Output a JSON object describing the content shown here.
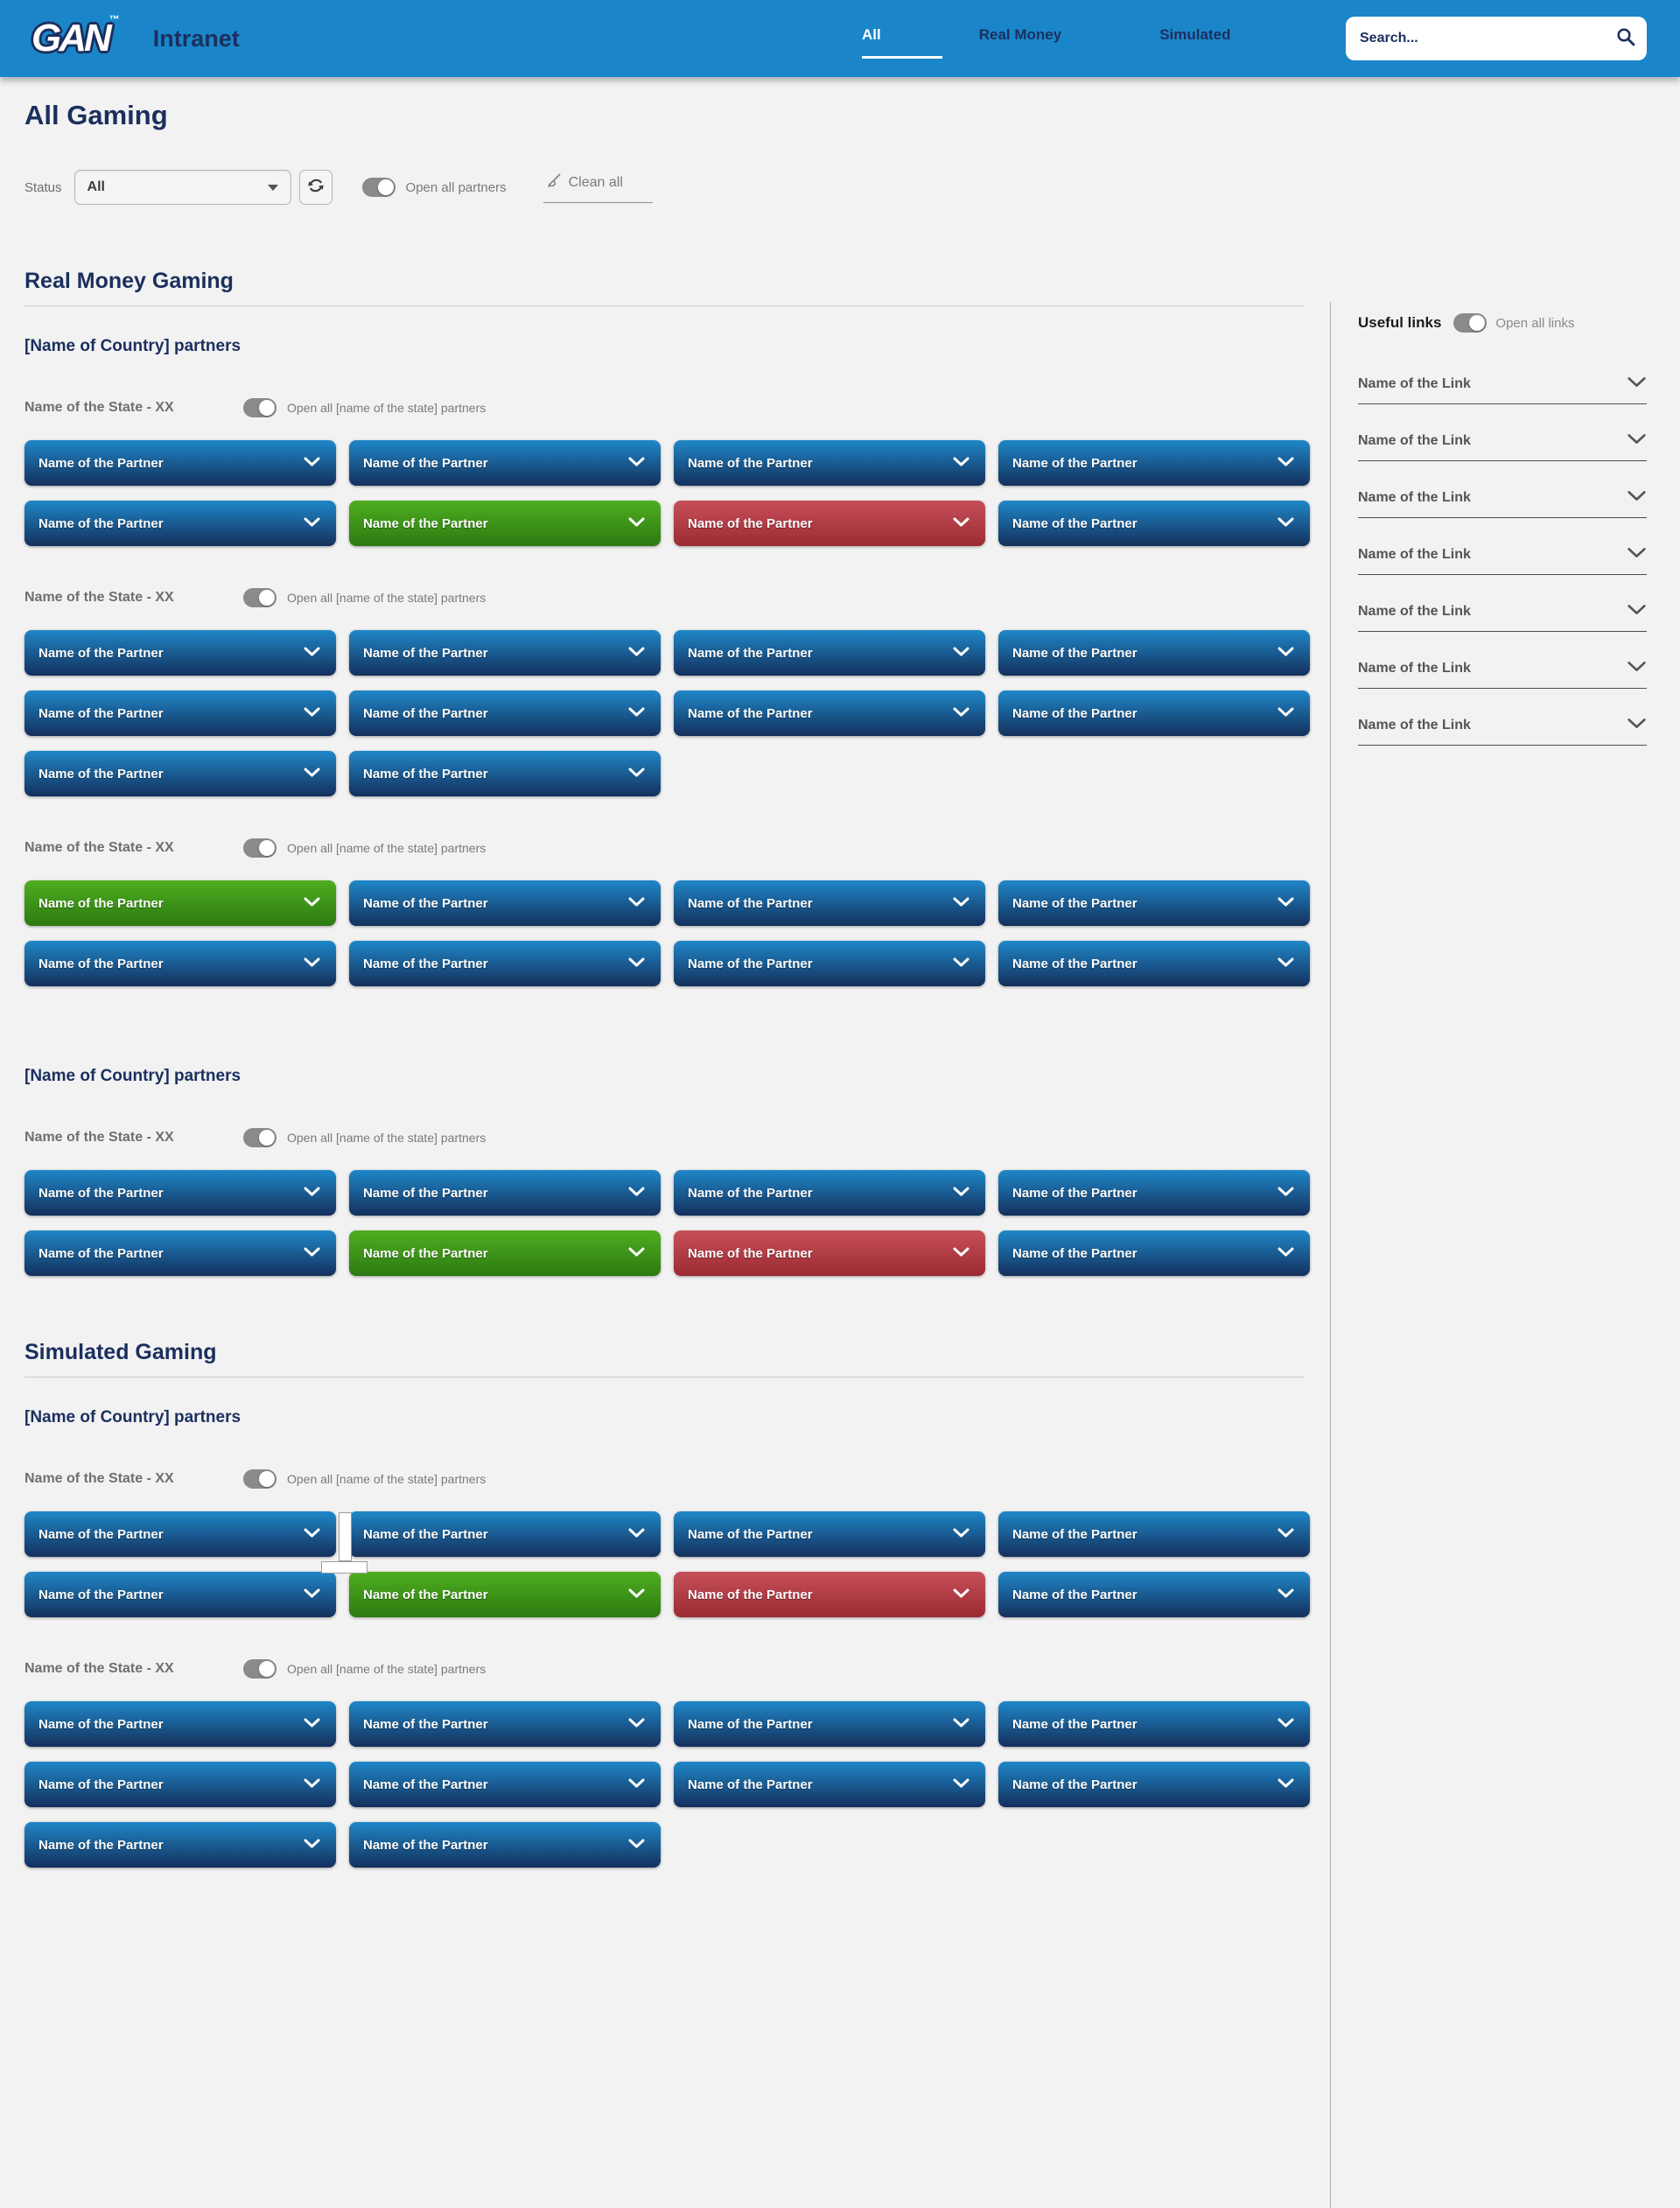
{
  "colors": {
    "header_blue": "#1a86c9",
    "navy_text": "#1b2f5e",
    "page_bg": "#f2f2f2",
    "partner_blue": [
      "#1f87c8",
      "#14305c"
    ],
    "partner_green": [
      "#4fae1f",
      "#2c7a11"
    ],
    "partner_red": [
      "#c65059",
      "#9c2a32"
    ],
    "gray_text": "#7a7a7a",
    "toggle_gray": "#8a8a8a"
  },
  "header": {
    "logo_text": "GAN",
    "logo_mark": "™",
    "app_title": "Intranet",
    "tabs": [
      {
        "label": "All",
        "active": true
      },
      {
        "label": "Real Money",
        "active": false
      },
      {
        "label": "Simulated",
        "active": false
      }
    ],
    "search_placeholder": "Search..."
  },
  "page_title": "All Gaming",
  "controls": {
    "status_label": "Status",
    "status_value": "All",
    "open_all_partners_label": "Open all partners",
    "clean_all_label": "Clean all"
  },
  "sections": [
    {
      "title": "Real Money Gaming",
      "countries": [
        {
          "title": "[Name of Country] partners",
          "states": [
            {
              "name": "Name of the State - XX",
              "toggle_label": "Open all [name of the state] partners",
              "partner_rows": [
                [
                  "blue",
                  "blue",
                  "blue",
                  "blue"
                ],
                [
                  "blue",
                  "green",
                  "red",
                  "blue"
                ]
              ]
            },
            {
              "name": "Name of the State - XX",
              "toggle_label": "Open all [name of the state] partners",
              "partner_rows": [
                [
                  "blue",
                  "blue",
                  "blue",
                  "blue"
                ],
                [
                  "blue",
                  "blue",
                  "blue",
                  "blue"
                ],
                [
                  "blue",
                  "blue"
                ]
              ]
            },
            {
              "name": "Name of the State - XX",
              "toggle_label": "Open all [name of the state] partners",
              "partner_rows": [
                [
                  "green",
                  "blue",
                  "blue",
                  "blue"
                ],
                [
                  "blue",
                  "blue",
                  "blue",
                  "blue"
                ]
              ]
            }
          ]
        },
        {
          "title": "[Name of Country] partners",
          "states": [
            {
              "name": "Name of the State - XX",
              "toggle_label": "Open all [name of the state] partners",
              "partner_rows": [
                [
                  "blue",
                  "blue",
                  "blue",
                  "blue"
                ],
                [
                  "blue",
                  "green",
                  "red",
                  "blue"
                ]
              ]
            }
          ]
        }
      ]
    },
    {
      "title": "Simulated Gaming",
      "countries": [
        {
          "title": "[Name of Country] partners",
          "states": [
            {
              "name": "Name of the State - XX",
              "toggle_label": "Open all [name of the state] partners",
              "partner_rows": [
                [
                  "blue",
                  "blue",
                  "blue",
                  "blue"
                ],
                [
                  "blue",
                  "green",
                  "red",
                  "blue"
                ]
              ],
              "scroll_marker": true
            },
            {
              "name": "Name of the State - XX",
              "toggle_label": "Open all [name of the state] partners",
              "partner_rows": [
                [
                  "blue",
                  "blue",
                  "blue",
                  "blue"
                ],
                [
                  "blue",
                  "blue",
                  "blue",
                  "blue"
                ],
                [
                  "blue",
                  "blue"
                ]
              ]
            }
          ]
        }
      ]
    }
  ],
  "partner_label": "Name of the Partner",
  "sidebar": {
    "title": "Useful links",
    "toggle_label": "Open all links",
    "links": [
      "Name of the Link",
      "Name of the Link",
      "Name of the Link",
      "Name of the Link",
      "Name of the Link",
      "Name of the Link",
      "Name of the Link"
    ]
  }
}
